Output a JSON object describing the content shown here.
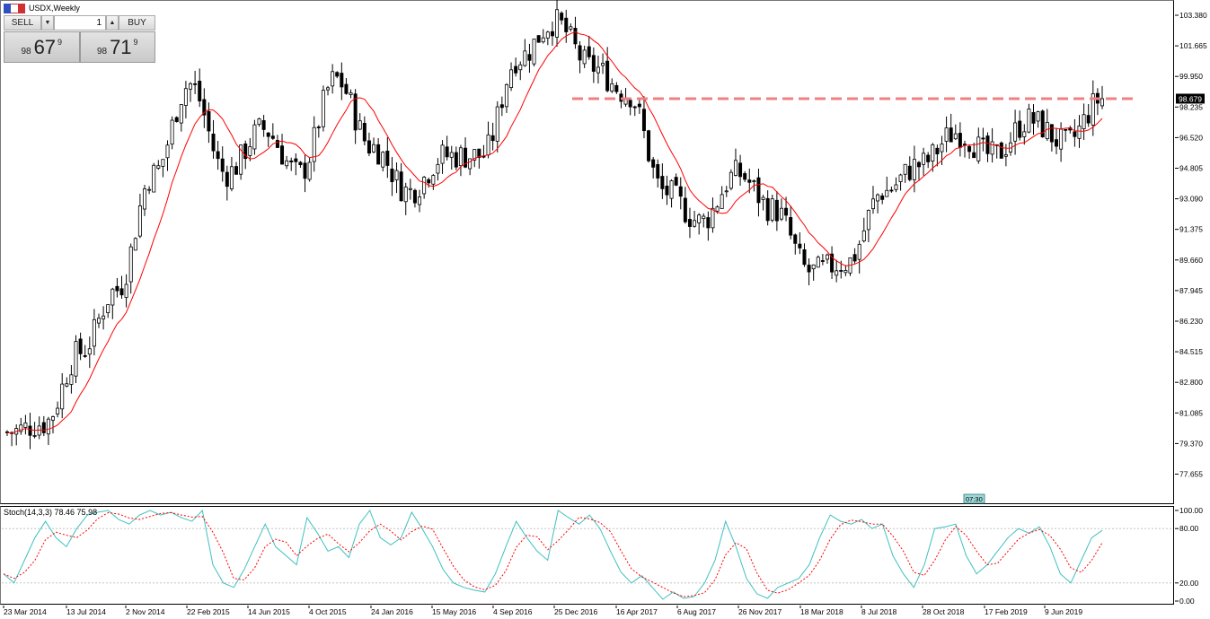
{
  "window": {
    "title": "USDX,Weekly"
  },
  "trade": {
    "sell_label": "SELL",
    "buy_label": "BUY",
    "quantity": "1",
    "sell_price": {
      "prefix": "98",
      "big": "67",
      "sup": "9"
    },
    "buy_price": {
      "prefix": "98",
      "big": "71",
      "sup": "9"
    }
  },
  "session_tag": "07:30",
  "current_price": "98.679",
  "stoch_label": "Stoch(14,3,3) 78.46 75.98",
  "colors": {
    "bull_body": "#ffffff",
    "bear_body": "#000000",
    "ma_line": "#ff0000",
    "resistance": "#f08080",
    "stoch_main": "#40c0c0",
    "stoch_signal": "#ff0000",
    "price_tag_bg": "#000000"
  },
  "chart_data": [
    {
      "type": "candlestick",
      "title": "USDX,Weekly",
      "y_ticks": [
        "103.380",
        "101.665",
        "99.950",
        "98.235",
        "96.520",
        "94.805",
        "93.090",
        "91.375",
        "89.660",
        "87.945",
        "86.230",
        "84.515",
        "82.800",
        "81.085",
        "79.370",
        "77.655"
      ],
      "ylim": [
        76.5,
        104.2
      ],
      "x_ticks": [
        "23 Mar 2014",
        "13 Jul 2014",
        "2 Nov 2014",
        "22 Feb 2015",
        "14 Jun 2015",
        "4 Oct 2015",
        "24 Jan 2016",
        "15 May 2016",
        "4 Sep 2016",
        "25 Dec 2016",
        "16 Apr 2017",
        "6 Aug 2017",
        "26 Nov 2017",
        "18 Mar 2018",
        "8 Jul 2018",
        "28 Oct 2018",
        "17 Feb 2019",
        "9 Jun 2019"
      ],
      "overlay": "moving average",
      "resistance_level": 98.7,
      "series": [
        {
          "period": "Mar 2014",
          "close": 80.0
        },
        {
          "period": "Jul 2014",
          "close": 80.5
        },
        {
          "period": "Sep 2014",
          "close": 84.5
        },
        {
          "period": "Nov 2014",
          "close": 88.0
        },
        {
          "period": "Jan 2015",
          "close": 94.5
        },
        {
          "period": "Mar 2015",
          "close": 99.5
        },
        {
          "period": "May 2015",
          "close": 94.5
        },
        {
          "period": "Jul 2015",
          "close": 97.0
        },
        {
          "period": "Aug 2015",
          "close": 94.5
        },
        {
          "period": "Nov 2015",
          "close": 99.8
        },
        {
          "period": "Feb 2016",
          "close": 96.0
        },
        {
          "period": "Apr 2016",
          "close": 93.5
        },
        {
          "period": "May 2016",
          "close": 95.5
        },
        {
          "period": "Sep 2016",
          "close": 95.5
        },
        {
          "period": "Nov 2016",
          "close": 101.0
        },
        {
          "period": "Jan 2017",
          "close": 103.0
        },
        {
          "period": "Mar 2017",
          "close": 100.5
        },
        {
          "period": "Apr 2017",
          "close": 99.0
        },
        {
          "period": "Jul 2017",
          "close": 93.5
        },
        {
          "period": "Sep 2017",
          "close": 91.8
        },
        {
          "period": "Oct 2017",
          "close": 94.5
        },
        {
          "period": "Dec 2017",
          "close": 92.5
        },
        {
          "period": "Feb 2018",
          "close": 89.0
        },
        {
          "period": "Apr 2018",
          "close": 89.5
        },
        {
          "period": "May 2018",
          "close": 93.5
        },
        {
          "period": "Aug 2018",
          "close": 95.0
        },
        {
          "period": "Nov 2018",
          "close": 96.8
        },
        {
          "period": "Jan 2019",
          "close": 95.5
        },
        {
          "period": "Apr 2019",
          "close": 97.5
        },
        {
          "period": "Jun 2019",
          "close": 96.2
        },
        {
          "period": "Aug 2019",
          "close": 98.7
        }
      ]
    },
    {
      "type": "line",
      "title": "Stoch(14,3,3) 78.46 75.98",
      "y_ticks": [
        "100.00",
        "80.00",
        "20.00",
        "0.00"
      ],
      "ylim": [
        0,
        100
      ],
      "levels": [
        80,
        20
      ],
      "main_latest": 78.46,
      "signal_latest": 75.98,
      "values": [
        30,
        20,
        45,
        70,
        88,
        70,
        60,
        80,
        95,
        98,
        100,
        90,
        85,
        95,
        100,
        95,
        98,
        92,
        88,
        100,
        40,
        20,
        15,
        35,
        60,
        85,
        60,
        50,
        40,
        92,
        75,
        55,
        60,
        48,
        85,
        100,
        70,
        62,
        70,
        98,
        80,
        60,
        35,
        20,
        15,
        12,
        10,
        30,
        60,
        88,
        70,
        55,
        45,
        100,
        92,
        85,
        95,
        80,
        55,
        32,
        20,
        28,
        15,
        2,
        10,
        3,
        5,
        20,
        45,
        88,
        60,
        25,
        8,
        3,
        15,
        20,
        25,
        40,
        70,
        95,
        88,
        85,
        90,
        80,
        85,
        50,
        30,
        15,
        40,
        80,
        82,
        85,
        50,
        30,
        40,
        55,
        70,
        80,
        75,
        82,
        60,
        30,
        20,
        45,
        70,
        78
      ]
    }
  ]
}
